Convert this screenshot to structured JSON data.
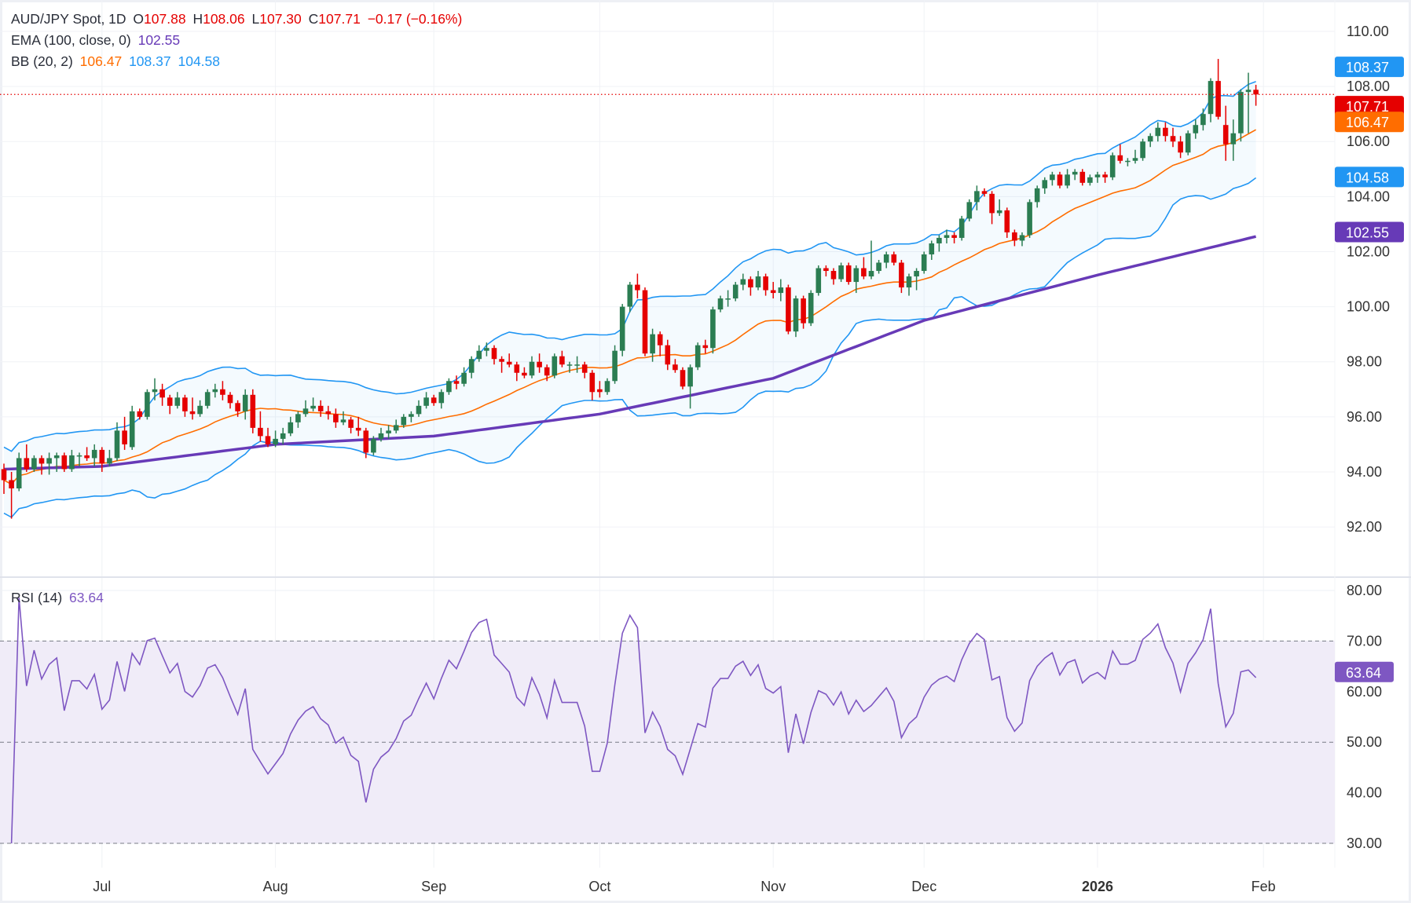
{
  "legend": {
    "symbol": "AUD/JPY Spot, 1D",
    "o_label": "O",
    "o": "107.88",
    "h_label": "H",
    "h": "108.06",
    "l_label": "L",
    "l": "107.30",
    "c_label": "C",
    "c": "107.71",
    "change": "−0.17 (−0.16%)",
    "ema_label": "EMA (100, close, 0)",
    "ema_value": "102.55",
    "bb_label": "BB (20, 2)",
    "bb_mid": "106.47",
    "bb_upper": "108.37",
    "bb_lower": "104.58",
    "rsi_label": "RSI (14)",
    "rsi_value": "63.64"
  },
  "colors": {
    "up": "#2b7d52",
    "down": "#e50000",
    "bb_band": "#2196f3",
    "bb_mid": "#ff6d00",
    "ema": "#673ab7",
    "rsi": "#7e57c2",
    "rsi_fill": "#f0ecf8",
    "last_price": "#e50000"
  },
  "chart_data": {
    "type": "candlestick",
    "price_axis": {
      "ylim": [
        91,
        111
      ],
      "ticks": [
        "92.00",
        "94.00",
        "96.00",
        "98.00",
        "100.00",
        "102.00",
        "104.00",
        "106.00",
        "108.00",
        "110.00"
      ]
    },
    "price_badges": [
      {
        "value": "108.37",
        "color": "#2196f3"
      },
      {
        "value": "107.71",
        "color": "#e50000"
      },
      {
        "value": "106.47",
        "color": "#ff6d00"
      },
      {
        "value": "104.58",
        "color": "#2196f3"
      },
      {
        "value": "102.55",
        "color": "#673ab7"
      }
    ],
    "time_ticks": [
      {
        "label": "Jul",
        "date": "2025-07-01"
      },
      {
        "label": "Aug",
        "date": "2025-08-01"
      },
      {
        "label": "Sep",
        "date": "2025-09-01"
      },
      {
        "label": "Oct",
        "date": "2025-10-01"
      },
      {
        "label": "Nov",
        "date": "2025-11-03"
      },
      {
        "label": "Dec",
        "date": "2025-12-01"
      },
      {
        "label": "2026",
        "date": "2026-01-01",
        "bold": true
      },
      {
        "label": "Feb",
        "date": "2026-02-02"
      }
    ],
    "candles": {
      "2025-06": [
        [
          12,
          94.1,
          94.3,
          93.2,
          93.7
        ],
        [
          13,
          93.7,
          94.0,
          92.3,
          93.4
        ],
        [
          16,
          93.4,
          94.7,
          93.3,
          94.5
        ],
        [
          17,
          94.5,
          95.0,
          94.0,
          94.1
        ],
        [
          18,
          94.1,
          94.6,
          94.0,
          94.5
        ],
        [
          19,
          94.5,
          94.6,
          93.9,
          94.3
        ],
        [
          20,
          94.3,
          94.7,
          93.9,
          94.5
        ],
        [
          23,
          94.5,
          94.7,
          94.0,
          94.6
        ],
        [
          24,
          94.6,
          94.7,
          94.0,
          94.1
        ],
        [
          25,
          94.1,
          94.8,
          94.0,
          94.6
        ],
        [
          26,
          94.6,
          94.7,
          94.2,
          94.6
        ],
        [
          27,
          94.6,
          94.9,
          94.4,
          94.5
        ],
        [
          30,
          94.5,
          95.0,
          94.2,
          94.8
        ]
      ],
      "2025-07": [
        [
          1,
          94.8,
          94.9,
          94.0,
          94.3
        ],
        [
          2,
          94.3,
          94.8,
          94.2,
          94.5
        ],
        [
          3,
          94.5,
          95.8,
          94.4,
          95.5
        ],
        [
          4,
          95.5,
          96.0,
          94.8,
          95.0
        ],
        [
          7,
          94.9,
          96.4,
          94.8,
          96.2
        ],
        [
          8,
          96.2,
          96.3,
          95.9,
          96.0
        ],
        [
          9,
          96.0,
          97.0,
          95.9,
          96.9
        ],
        [
          10,
          96.9,
          97.4,
          96.6,
          97.0
        ],
        [
          11,
          97.0,
          97.2,
          96.4,
          96.7
        ],
        [
          14,
          96.7,
          96.8,
          96.1,
          96.4
        ],
        [
          15,
          96.4,
          96.9,
          96.3,
          96.7
        ],
        [
          16,
          96.7,
          96.8,
          96.0,
          96.2
        ],
        [
          17,
          96.2,
          96.7,
          95.9,
          96.1
        ],
        [
          18,
          96.1,
          96.6,
          96.0,
          96.4
        ],
        [
          21,
          96.4,
          97.0,
          96.3,
          96.9
        ],
        [
          22,
          96.9,
          97.2,
          96.7,
          97.0
        ],
        [
          23,
          97.0,
          97.3,
          96.6,
          96.8
        ],
        [
          24,
          96.8,
          96.9,
          96.3,
          96.5
        ],
        [
          25,
          96.5,
          96.6,
          96.0,
          96.2
        ],
        [
          28,
          96.2,
          97.0,
          95.9,
          96.8
        ],
        [
          29,
          96.8,
          97.0,
          95.4,
          95.6
        ],
        [
          30,
          95.6,
          96.2,
          95.1,
          95.3
        ],
        [
          31,
          95.3,
          95.6,
          94.9,
          95.0
        ]
      ],
      "2025-08": [
        [
          1,
          95.0,
          95.5,
          94.9,
          95.2
        ],
        [
          4,
          95.2,
          95.6,
          95.0,
          95.4
        ],
        [
          5,
          95.4,
          96.0,
          95.3,
          95.8
        ],
        [
          6,
          95.8,
          96.2,
          95.6,
          96.1
        ],
        [
          7,
          96.1,
          96.6,
          96.0,
          96.3
        ],
        [
          8,
          96.3,
          96.7,
          96.2,
          96.4
        ],
        [
          11,
          96.4,
          96.6,
          96.0,
          96.2
        ],
        [
          12,
          96.2,
          96.4,
          95.9,
          96.1
        ],
        [
          13,
          96.1,
          96.3,
          95.6,
          95.8
        ],
        [
          14,
          95.8,
          96.2,
          95.7,
          95.9
        ],
        [
          15,
          95.9,
          96.0,
          95.4,
          95.6
        ],
        [
          18,
          95.6,
          96.0,
          95.3,
          95.5
        ],
        [
          19,
          95.5,
          95.6,
          94.5,
          94.7
        ],
        [
          20,
          94.7,
          95.3,
          94.6,
          95.2
        ],
        [
          21,
          95.2,
          95.6,
          95.1,
          95.4
        ],
        [
          22,
          95.4,
          95.7,
          95.2,
          95.5
        ],
        [
          25,
          95.5,
          95.9,
          95.4,
          95.7
        ],
        [
          26,
          95.7,
          96.1,
          95.6,
          96.0
        ],
        [
          27,
          96.0,
          96.2,
          95.8,
          96.1
        ],
        [
          28,
          96.1,
          96.6,
          96.0,
          96.4
        ],
        [
          29,
          96.4,
          96.9,
          96.3,
          96.7
        ]
      ],
      "2025-09": [
        [
          1,
          96.7,
          96.8,
          96.4,
          96.5
        ],
        [
          2,
          96.5,
          97.0,
          96.3,
          96.9
        ],
        [
          3,
          96.9,
          97.4,
          96.8,
          97.3
        ],
        [
          4,
          97.3,
          97.5,
          97.0,
          97.2
        ],
        [
          5,
          97.2,
          97.8,
          97.1,
          97.6
        ],
        [
          8,
          97.6,
          98.2,
          97.4,
          98.1
        ],
        [
          9,
          98.1,
          98.6,
          98.0,
          98.4
        ],
        [
          10,
          98.4,
          98.7,
          98.2,
          98.5
        ],
        [
          11,
          98.5,
          98.6,
          97.9,
          98.1
        ],
        [
          12,
          98.1,
          98.2,
          97.6,
          98.0
        ],
        [
          15,
          98.0,
          98.3,
          97.8,
          97.9
        ],
        [
          16,
          97.9,
          98.0,
          97.3,
          97.6
        ],
        [
          17,
          97.6,
          97.8,
          97.4,
          97.5
        ],
        [
          18,
          97.5,
          98.2,
          97.4,
          98.0
        ],
        [
          19,
          98.0,
          98.3,
          97.6,
          97.8
        ],
        [
          22,
          97.8,
          97.9,
          97.3,
          97.5
        ],
        [
          23,
          97.5,
          98.3,
          97.4,
          98.2
        ],
        [
          24,
          98.2,
          98.4,
          97.8,
          97.9
        ],
        [
          25,
          97.9,
          98.0,
          97.6,
          97.9
        ],
        [
          26,
          97.9,
          98.2,
          97.6,
          97.9
        ],
        [
          29,
          97.9,
          98.0,
          97.4,
          97.6
        ],
        [
          30,
          97.6,
          97.7,
          96.6,
          96.9
        ]
      ],
      "2025-10": [
        [
          1,
          97.0,
          97.3,
          96.7,
          96.9
        ],
        [
          2,
          96.9,
          97.4,
          96.8,
          97.3
        ],
        [
          3,
          97.3,
          98.6,
          97.2,
          98.4
        ],
        [
          6,
          98.4,
          100.1,
          98.2,
          100.0
        ],
        [
          7,
          100.0,
          100.9,
          99.8,
          100.8
        ],
        [
          8,
          100.8,
          101.2,
          100.3,
          100.6
        ],
        [
          9,
          100.6,
          100.7,
          98.2,
          98.3
        ],
        [
          10,
          98.3,
          99.2,
          98.0,
          99.0
        ],
        [
          13,
          99.0,
          99.1,
          98.2,
          98.6
        ],
        [
          14,
          98.6,
          98.8,
          97.7,
          97.9
        ],
        [
          15,
          97.9,
          98.1,
          97.6,
          97.7
        ],
        [
          16,
          97.7,
          97.8,
          97.0,
          97.1
        ],
        [
          17,
          97.1,
          97.9,
          96.3,
          97.8
        ],
        [
          20,
          97.8,
          98.7,
          97.7,
          98.6
        ],
        [
          21,
          98.6,
          98.8,
          98.3,
          98.5
        ],
        [
          22,
          98.5,
          100.0,
          98.3,
          99.9
        ],
        [
          23,
          99.9,
          100.4,
          99.8,
          100.3
        ],
        [
          24,
          100.3,
          100.6,
          100.0,
          100.3
        ],
        [
          27,
          100.3,
          100.9,
          100.2,
          100.8
        ],
        [
          28,
          100.8,
          101.2,
          100.6,
          101.0
        ],
        [
          29,
          101.0,
          101.1,
          100.4,
          100.7
        ],
        [
          30,
          100.7,
          101.3,
          100.6,
          101.1
        ],
        [
          31,
          101.1,
          101.2,
          100.4,
          100.6
        ]
      ],
      "2025-11": [
        [
          3,
          100.6,
          100.9,
          100.3,
          100.5
        ],
        [
          4,
          100.5,
          101.0,
          100.2,
          100.7
        ],
        [
          5,
          100.7,
          100.8,
          99.0,
          99.1
        ],
        [
          6,
          99.1,
          100.4,
          98.9,
          100.3
        ],
        [
          7,
          100.3,
          100.4,
          99.2,
          99.4
        ],
        [
          10,
          99.4,
          100.6,
          99.3,
          100.5
        ],
        [
          11,
          100.5,
          101.5,
          100.4,
          101.4
        ],
        [
          12,
          101.4,
          101.5,
          101.1,
          101.3
        ],
        [
          13,
          101.3,
          101.4,
          100.8,
          101.0
        ],
        [
          14,
          101.0,
          101.6,
          100.9,
          101.5
        ],
        [
          17,
          101.5,
          101.6,
          100.8,
          100.9
        ],
        [
          18,
          100.9,
          101.5,
          100.5,
          101.4
        ],
        [
          19,
          101.4,
          101.8,
          101.0,
          101.1
        ],
        [
          20,
          101.1,
          102.4,
          101.0,
          101.3
        ],
        [
          21,
          101.3,
          101.7,
          101.2,
          101.6
        ],
        [
          24,
          101.6,
          102.0,
          101.4,
          101.9
        ],
        [
          25,
          101.9,
          102.0,
          101.5,
          101.6
        ],
        [
          26,
          101.6,
          101.7,
          100.5,
          100.7
        ],
        [
          27,
          100.7,
          101.2,
          100.4,
          101.1
        ],
        [
          28,
          101.1,
          101.4,
          100.6,
          101.3
        ]
      ],
      "2025-12": [
        [
          1,
          101.3,
          102.0,
          101.2,
          101.9
        ],
        [
          2,
          101.9,
          102.4,
          101.7,
          102.3
        ],
        [
          3,
          102.3,
          102.6,
          102.0,
          102.5
        ],
        [
          4,
          102.5,
          102.8,
          102.3,
          102.6
        ],
        [
          5,
          102.6,
          102.7,
          102.3,
          102.5
        ],
        [
          8,
          102.5,
          103.3,
          102.4,
          103.2
        ],
        [
          9,
          103.2,
          103.9,
          103.1,
          103.8
        ],
        [
          10,
          103.8,
          104.4,
          103.5,
          104.2
        ],
        [
          11,
          104.2,
          104.3,
          104.0,
          104.1
        ],
        [
          12,
          104.1,
          104.2,
          103.0,
          103.4
        ],
        [
          15,
          103.4,
          103.9,
          103.3,
          103.5
        ],
        [
          16,
          103.5,
          103.6,
          102.5,
          102.7
        ],
        [
          17,
          102.7,
          102.8,
          102.2,
          102.4
        ],
        [
          18,
          102.4,
          102.7,
          102.2,
          102.6
        ],
        [
          19,
          102.6,
          103.9,
          102.5,
          103.8
        ],
        [
          22,
          103.8,
          104.4,
          103.6,
          104.3
        ],
        [
          23,
          104.3,
          104.7,
          104.1,
          104.6
        ],
        [
          24,
          104.6,
          104.9,
          104.4,
          104.8
        ],
        [
          25,
          104.8,
          104.9,
          104.3,
          104.4
        ],
        [
          26,
          104.4,
          105.0,
          104.3,
          104.8
        ],
        [
          29,
          104.8,
          105.0,
          104.6,
          104.9
        ],
        [
          30,
          104.9,
          105.0,
          104.4,
          104.5
        ],
        [
          31,
          104.5,
          104.8,
          104.4,
          104.7
        ]
      ],
      "2026-01": [
        [
          1,
          104.7,
          104.9,
          104.5,
          104.8
        ],
        [
          2,
          104.8,
          104.9,
          104.5,
          104.7
        ],
        [
          5,
          104.7,
          105.6,
          104.6,
          105.5
        ],
        [
          6,
          105.5,
          105.9,
          105.2,
          105.3
        ],
        [
          7,
          105.3,
          105.4,
          105.1,
          105.3
        ],
        [
          8,
          105.3,
          105.7,
          105.2,
          105.4
        ],
        [
          9,
          105.4,
          106.1,
          105.3,
          106.0
        ],
        [
          12,
          106.0,
          106.3,
          105.8,
          106.2
        ],
        [
          13,
          106.2,
          106.7,
          106.0,
          106.5
        ],
        [
          14,
          106.5,
          106.7,
          106.0,
          106.2
        ],
        [
          15,
          106.2,
          106.5,
          105.8,
          106.0
        ],
        [
          16,
          106.0,
          106.2,
          105.4,
          105.6
        ],
        [
          19,
          105.6,
          106.4,
          105.5,
          106.3
        ],
        [
          20,
          106.3,
          106.8,
          106.1,
          106.6
        ],
        [
          21,
          106.6,
          107.2,
          106.4,
          107.0
        ],
        [
          22,
          107.0,
          108.3,
          106.7,
          108.2
        ],
        [
          23,
          108.2,
          109.0,
          106.8,
          106.9
        ],
        [
          26,
          106.6,
          107.3,
          105.3,
          105.9
        ],
        [
          27,
          105.9,
          106.8,
          105.3,
          106.3
        ],
        [
          28,
          106.3,
          107.9,
          106.0,
          107.8
        ],
        [
          29,
          107.8,
          108.5,
          106.3,
          107.88
        ],
        [
          30,
          107.88,
          108.06,
          107.3,
          107.71
        ]
      ]
    },
    "ema_100": [
      [
        "2025-06-12",
        94.1
      ],
      [
        "2025-07-01",
        94.2
      ],
      [
        "2025-08-01",
        95.0
      ],
      [
        "2025-09-01",
        95.3
      ],
      [
        "2025-10-01",
        96.1
      ],
      [
        "2025-11-03",
        97.4
      ],
      [
        "2025-12-01",
        99.5
      ],
      [
        "2026-01-01",
        101.15
      ],
      [
        "2026-01-30",
        102.55
      ]
    ],
    "rsi_axis": {
      "ylim": [
        25,
        82
      ],
      "ticks": [
        "30.00",
        "40.00",
        "50.00",
        "60.00",
        "70.00",
        "80.00"
      ],
      "bands": [
        30,
        50,
        70
      ]
    },
    "rsi_badge": {
      "value": "63.64",
      "color": "#7e57c2"
    },
    "grid": true
  }
}
